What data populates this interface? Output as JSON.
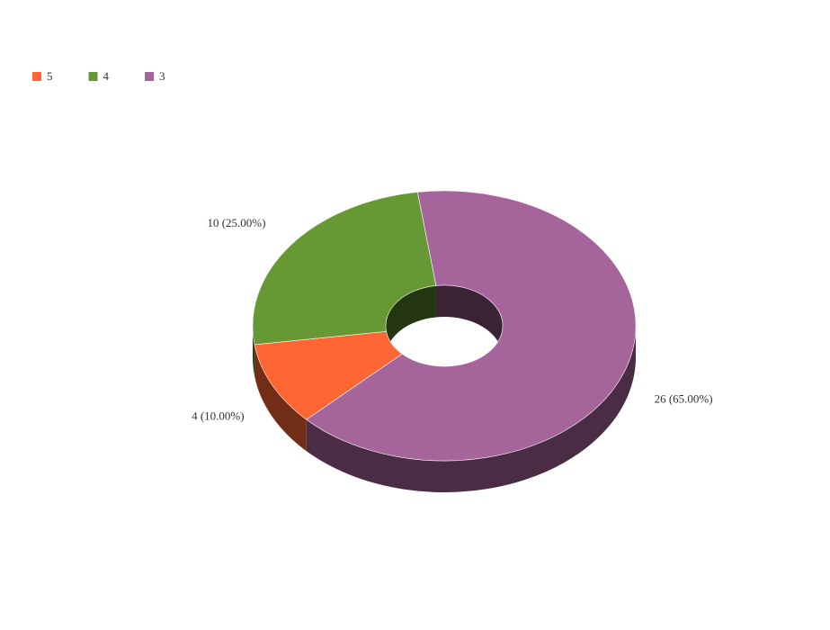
{
  "chart_data": {
    "type": "pie",
    "donut": true,
    "categories": [
      "5",
      "4",
      "3"
    ],
    "values": [
      4,
      10,
      26
    ],
    "value_labels": [
      "4 (10.00%)",
      "10 (25.00%)",
      "26 (65.00%)"
    ],
    "colors": [
      "#ff6633",
      "#669933",
      "#a6659a"
    ],
    "legend": "top-left"
  }
}
